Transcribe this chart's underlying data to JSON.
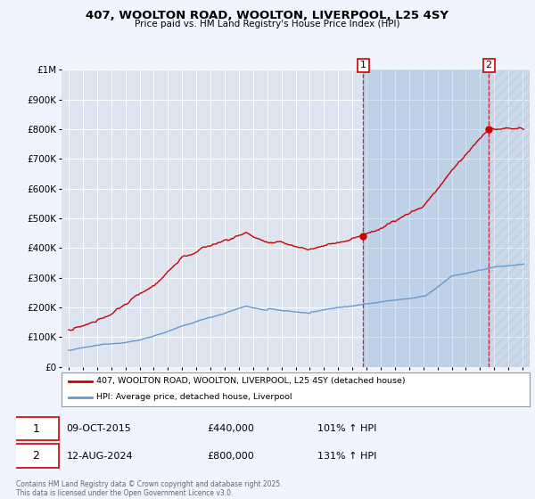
{
  "title": "407, WOOLTON ROAD, WOOLTON, LIVERPOOL, L25 4SY",
  "subtitle": "Price paid vs. HM Land Registry's House Price Index (HPI)",
  "background_color": "#f0f4ff",
  "plot_bg_color": "#dde4f0",
  "grid_color": "#ffffff",
  "red_line_color": "#cc0000",
  "blue_line_color": "#6699cc",
  "shade_color": "#ddeeff",
  "marker1_year": 2015.77,
  "marker2_year": 2024.62,
  "marker1_value": 440000,
  "marker2_value": 800000,
  "annotation1": "1",
  "annotation2": "2",
  "legend_red": "407, WOOLTON ROAD, WOOLTON, LIVERPOOL, L25 4SY (detached house)",
  "legend_blue": "HPI: Average price, detached house, Liverpool",
  "note1_label": "1",
  "note1_date": "09-OCT-2015",
  "note1_price": "£440,000",
  "note1_hpi": "101% ↑ HPI",
  "note2_label": "2",
  "note2_date": "12-AUG-2024",
  "note2_price": "£800,000",
  "note2_hpi": "131% ↑ HPI",
  "copyright": "Contains HM Land Registry data © Crown copyright and database right 2025.\nThis data is licensed under the Open Government Licence v3.0.",
  "xmin": 1994.5,
  "xmax": 2027.5,
  "ymin": 0,
  "ymax": 1000000,
  "yticks": [
    0,
    100000,
    200000,
    300000,
    400000,
    500000,
    600000,
    700000,
    800000,
    900000,
    1000000
  ],
  "ytick_labels": [
    "£0",
    "£100K",
    "£200K",
    "£300K",
    "£400K",
    "£500K",
    "£600K",
    "£700K",
    "£800K",
    "£900K",
    "£1M"
  ]
}
